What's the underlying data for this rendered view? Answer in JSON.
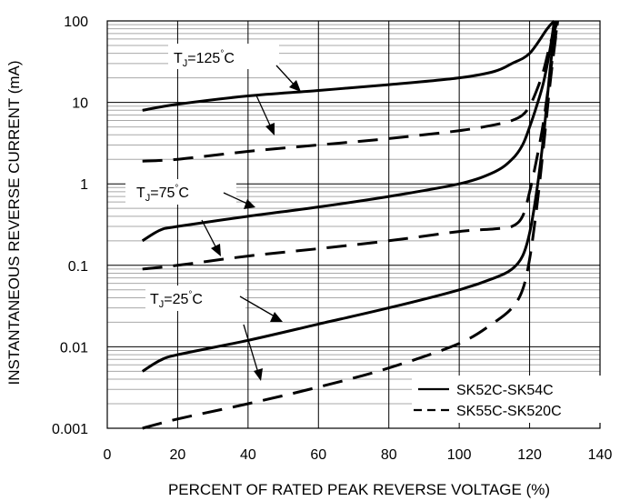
{
  "chart_data": {
    "type": "line",
    "title": "",
    "xlabel": "PERCENT OF RATED PEAK REVERSE VOLTAGE (%)",
    "ylabel": "INSTANTANEOUS REVERSE CURRENT (mA)",
    "xlim": [
      0,
      140
    ],
    "ylim": [
      0.001,
      100
    ],
    "yscale": "log",
    "grid": true,
    "x_ticks": [
      "0",
      "20",
      "40",
      "60",
      "80",
      "100",
      "120",
      "140"
    ],
    "y_ticks": [
      "0.001",
      "0.01",
      "0.1",
      "1",
      "10",
      "100"
    ],
    "legend_position": "bottom-right",
    "legend": [
      {
        "label": "SK52C-SK54C",
        "style": "solid"
      },
      {
        "label": "SK55C-SK520C",
        "style": "dashed"
      }
    ],
    "annotations": [
      {
        "tj": "J",
        "value": "=125",
        "unit": "C",
        "target": "125"
      },
      {
        "tj": "J",
        "value": "=75",
        "unit": "C",
        "target": "75"
      },
      {
        "tj": "J",
        "value": "=25",
        "unit": "C",
        "target": "25"
      }
    ],
    "series": [
      {
        "group": "SK52C-SK54C",
        "temperature": "125",
        "style": "solid",
        "x": [
          10,
          20,
          40,
          60,
          80,
          100,
          110,
          115,
          120,
          125,
          127
        ],
        "y": [
          8,
          9.5,
          12,
          14,
          16.5,
          20,
          24,
          30,
          40,
          80,
          100
        ]
      },
      {
        "group": "SK55C-SK520C",
        "temperature": "125",
        "style": "dashed",
        "x": [
          10,
          20,
          40,
          60,
          80,
          100,
          110,
          115,
          118,
          120,
          122,
          124,
          126,
          128
        ],
        "y": [
          1.9,
          2,
          2.5,
          3,
          3.6,
          4.5,
          5.3,
          6,
          7,
          9,
          14,
          25,
          55,
          100
        ]
      },
      {
        "group": "SK52C-SK54C",
        "temperature": "75",
        "style": "solid",
        "x": [
          10,
          15,
          20,
          40,
          60,
          80,
          100,
          110,
          115,
          118,
          120,
          122,
          124,
          126,
          127
        ],
        "y": [
          0.2,
          0.27,
          0.3,
          0.4,
          0.52,
          0.7,
          1,
          1.4,
          2,
          3,
          5,
          9,
          18,
          50,
          100
        ]
      },
      {
        "group": "SK55C-SK520C",
        "temperature": "75",
        "style": "dashed",
        "x": [
          10,
          20,
          40,
          60,
          80,
          100,
          110,
          115,
          118,
          120,
          122,
          124,
          126,
          128
        ],
        "y": [
          0.09,
          0.1,
          0.13,
          0.16,
          0.2,
          0.26,
          0.28,
          0.3,
          0.4,
          0.8,
          2,
          6,
          25,
          100
        ]
      },
      {
        "group": "SK52C-SK54C",
        "temperature": "25",
        "style": "solid",
        "x": [
          10,
          15,
          20,
          40,
          60,
          80,
          100,
          110,
          115,
          118,
          120,
          122,
          124,
          126,
          127.5
        ],
        "y": [
          0.005,
          0.0068,
          0.008,
          0.012,
          0.019,
          0.03,
          0.05,
          0.07,
          0.09,
          0.13,
          0.25,
          0.8,
          4,
          30,
          100
        ]
      },
      {
        "group": "SK55C-SK520C",
        "temperature": "25",
        "style": "dashed",
        "x": [
          10,
          20,
          40,
          60,
          80,
          100,
          110,
          115,
          118,
          120,
          122,
          124,
          126,
          128
        ],
        "y": [
          0.001,
          0.0013,
          0.002,
          0.0032,
          0.0055,
          0.011,
          0.02,
          0.03,
          0.05,
          0.12,
          0.5,
          3,
          20,
          100
        ]
      }
    ]
  }
}
